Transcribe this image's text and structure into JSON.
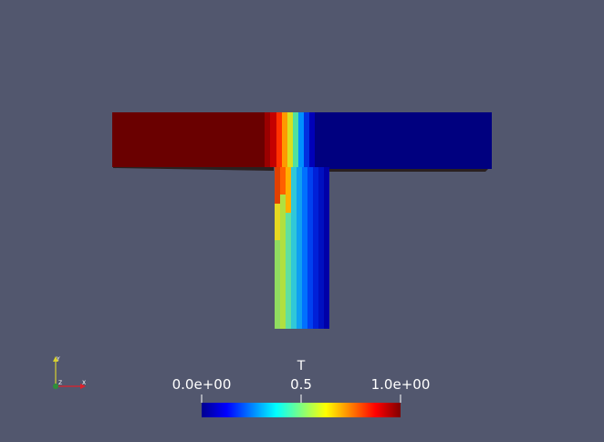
{
  "view": {
    "background": "#52576e",
    "field_name": "T"
  },
  "colorbar": {
    "title": "T",
    "min_label": "0.0e+00",
    "mid_label": "0.5",
    "max_label": "1.0e+00",
    "range": [
      0,
      1
    ],
    "colormap": "jet",
    "stops": [
      "#00008f",
      "#0000ff",
      "#00ffff",
      "#ffff00",
      "#ff0000",
      "#7f0000"
    ]
  },
  "axes": {
    "x_label": "X",
    "y_label": "Y",
    "z_label": "Z",
    "x_color": "#e0202a",
    "y_color": "#d9d22e",
    "z_color": "#2f8f3a"
  },
  "mesh": {
    "shape": "T-junction",
    "left_inlet_value": 1.0,
    "right_inlet_value": 0.0
  }
}
